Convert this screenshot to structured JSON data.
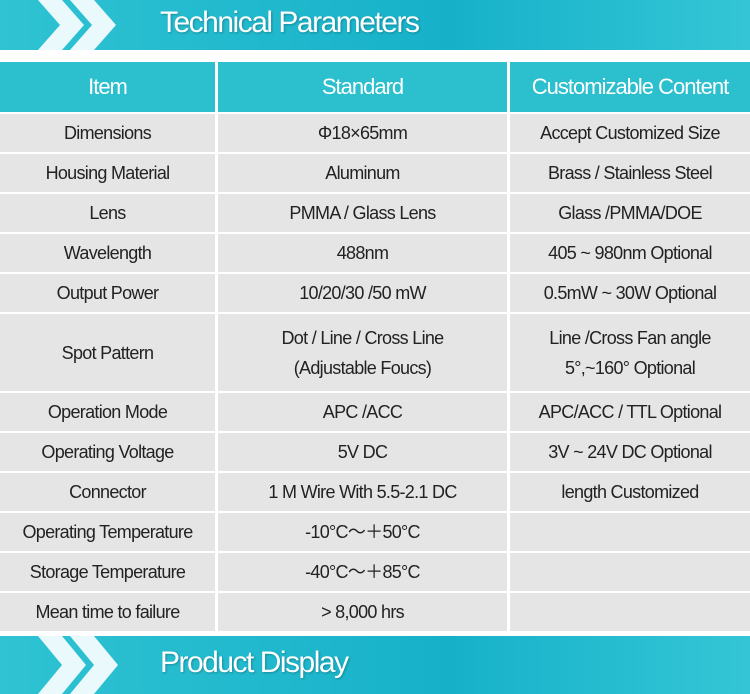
{
  "header": {
    "title": "Technical Parameters"
  },
  "table": {
    "columns": [
      "Item",
      "Standard",
      "Customizable Content"
    ],
    "rows": [
      [
        "Dimensions",
        "Φ18×65mm",
        "Accept Customized Size"
      ],
      [
        "Housing Material",
        "Aluminum",
        "Brass / Stainless Steel"
      ],
      [
        "Lens",
        "PMMA / Glass Lens",
        "Glass /PMMA/DOE"
      ],
      [
        "Wavelength",
        "488nm",
        "405 ~ 980nm Optional"
      ],
      [
        "Output Power",
        "10/20/30 /50 mW",
        "0.5mW ~ 30W Optional"
      ],
      [
        "Spot Pattern",
        [
          "Dot / Line / Cross Line",
          "(Adjustable Foucs)"
        ],
        [
          "Line /Cross Fan angle",
          "5°,~160° Optional"
        ]
      ],
      [
        "Operation Mode",
        "APC /ACC",
        "APC/ACC / TTL Optional"
      ],
      [
        "Operating Voltage",
        "5V DC",
        "3V ~ 24V DC Optional"
      ],
      [
        "Connector",
        "1 M Wire With 5.5-2.1 DC",
        "length Customized"
      ],
      [
        "Operating Temperature",
        "-10°C～＋50°C"
      ],
      [
        "Storage Temperature",
        "-40°C～＋85°C"
      ],
      [
        "Mean time to failure",
        "> 8,000 hrs"
      ]
    ]
  },
  "footer": {
    "title": "Product Display"
  }
}
